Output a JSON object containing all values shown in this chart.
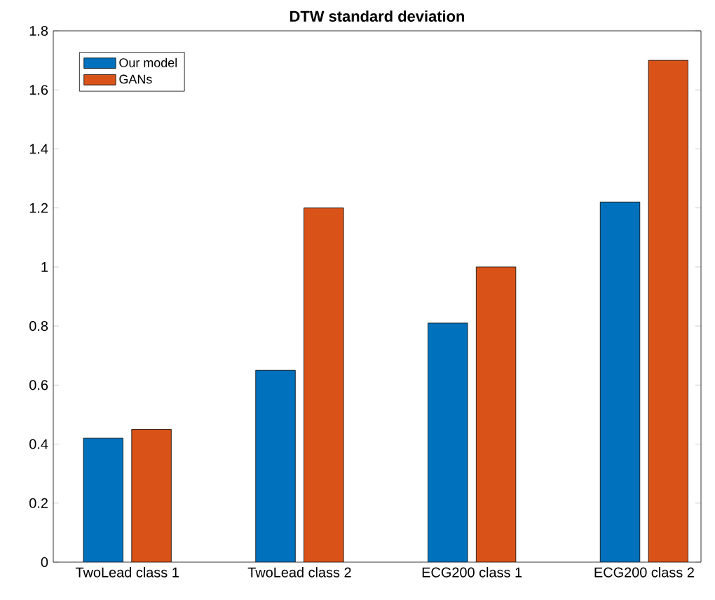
{
  "chart_data": {
    "type": "bar",
    "title": "DTW standard deviation",
    "categories": [
      "TwoLead class 1",
      "TwoLead class 2",
      "ECG200 class 1",
      "ECG200 class 2"
    ],
    "series": [
      {
        "name": "Our model",
        "color": "#0072bd",
        "values": [
          0.42,
          0.65,
          0.81,
          1.22
        ]
      },
      {
        "name": "GANs",
        "color": "#d95319",
        "values": [
          0.45,
          1.2,
          1.0,
          1.7
        ]
      }
    ],
    "ylim": [
      0,
      1.8
    ],
    "yticks": [
      0,
      0.2,
      0.4,
      0.6,
      0.8,
      1,
      1.2,
      1.4,
      1.6,
      1.8
    ],
    "legend": "top left"
  }
}
